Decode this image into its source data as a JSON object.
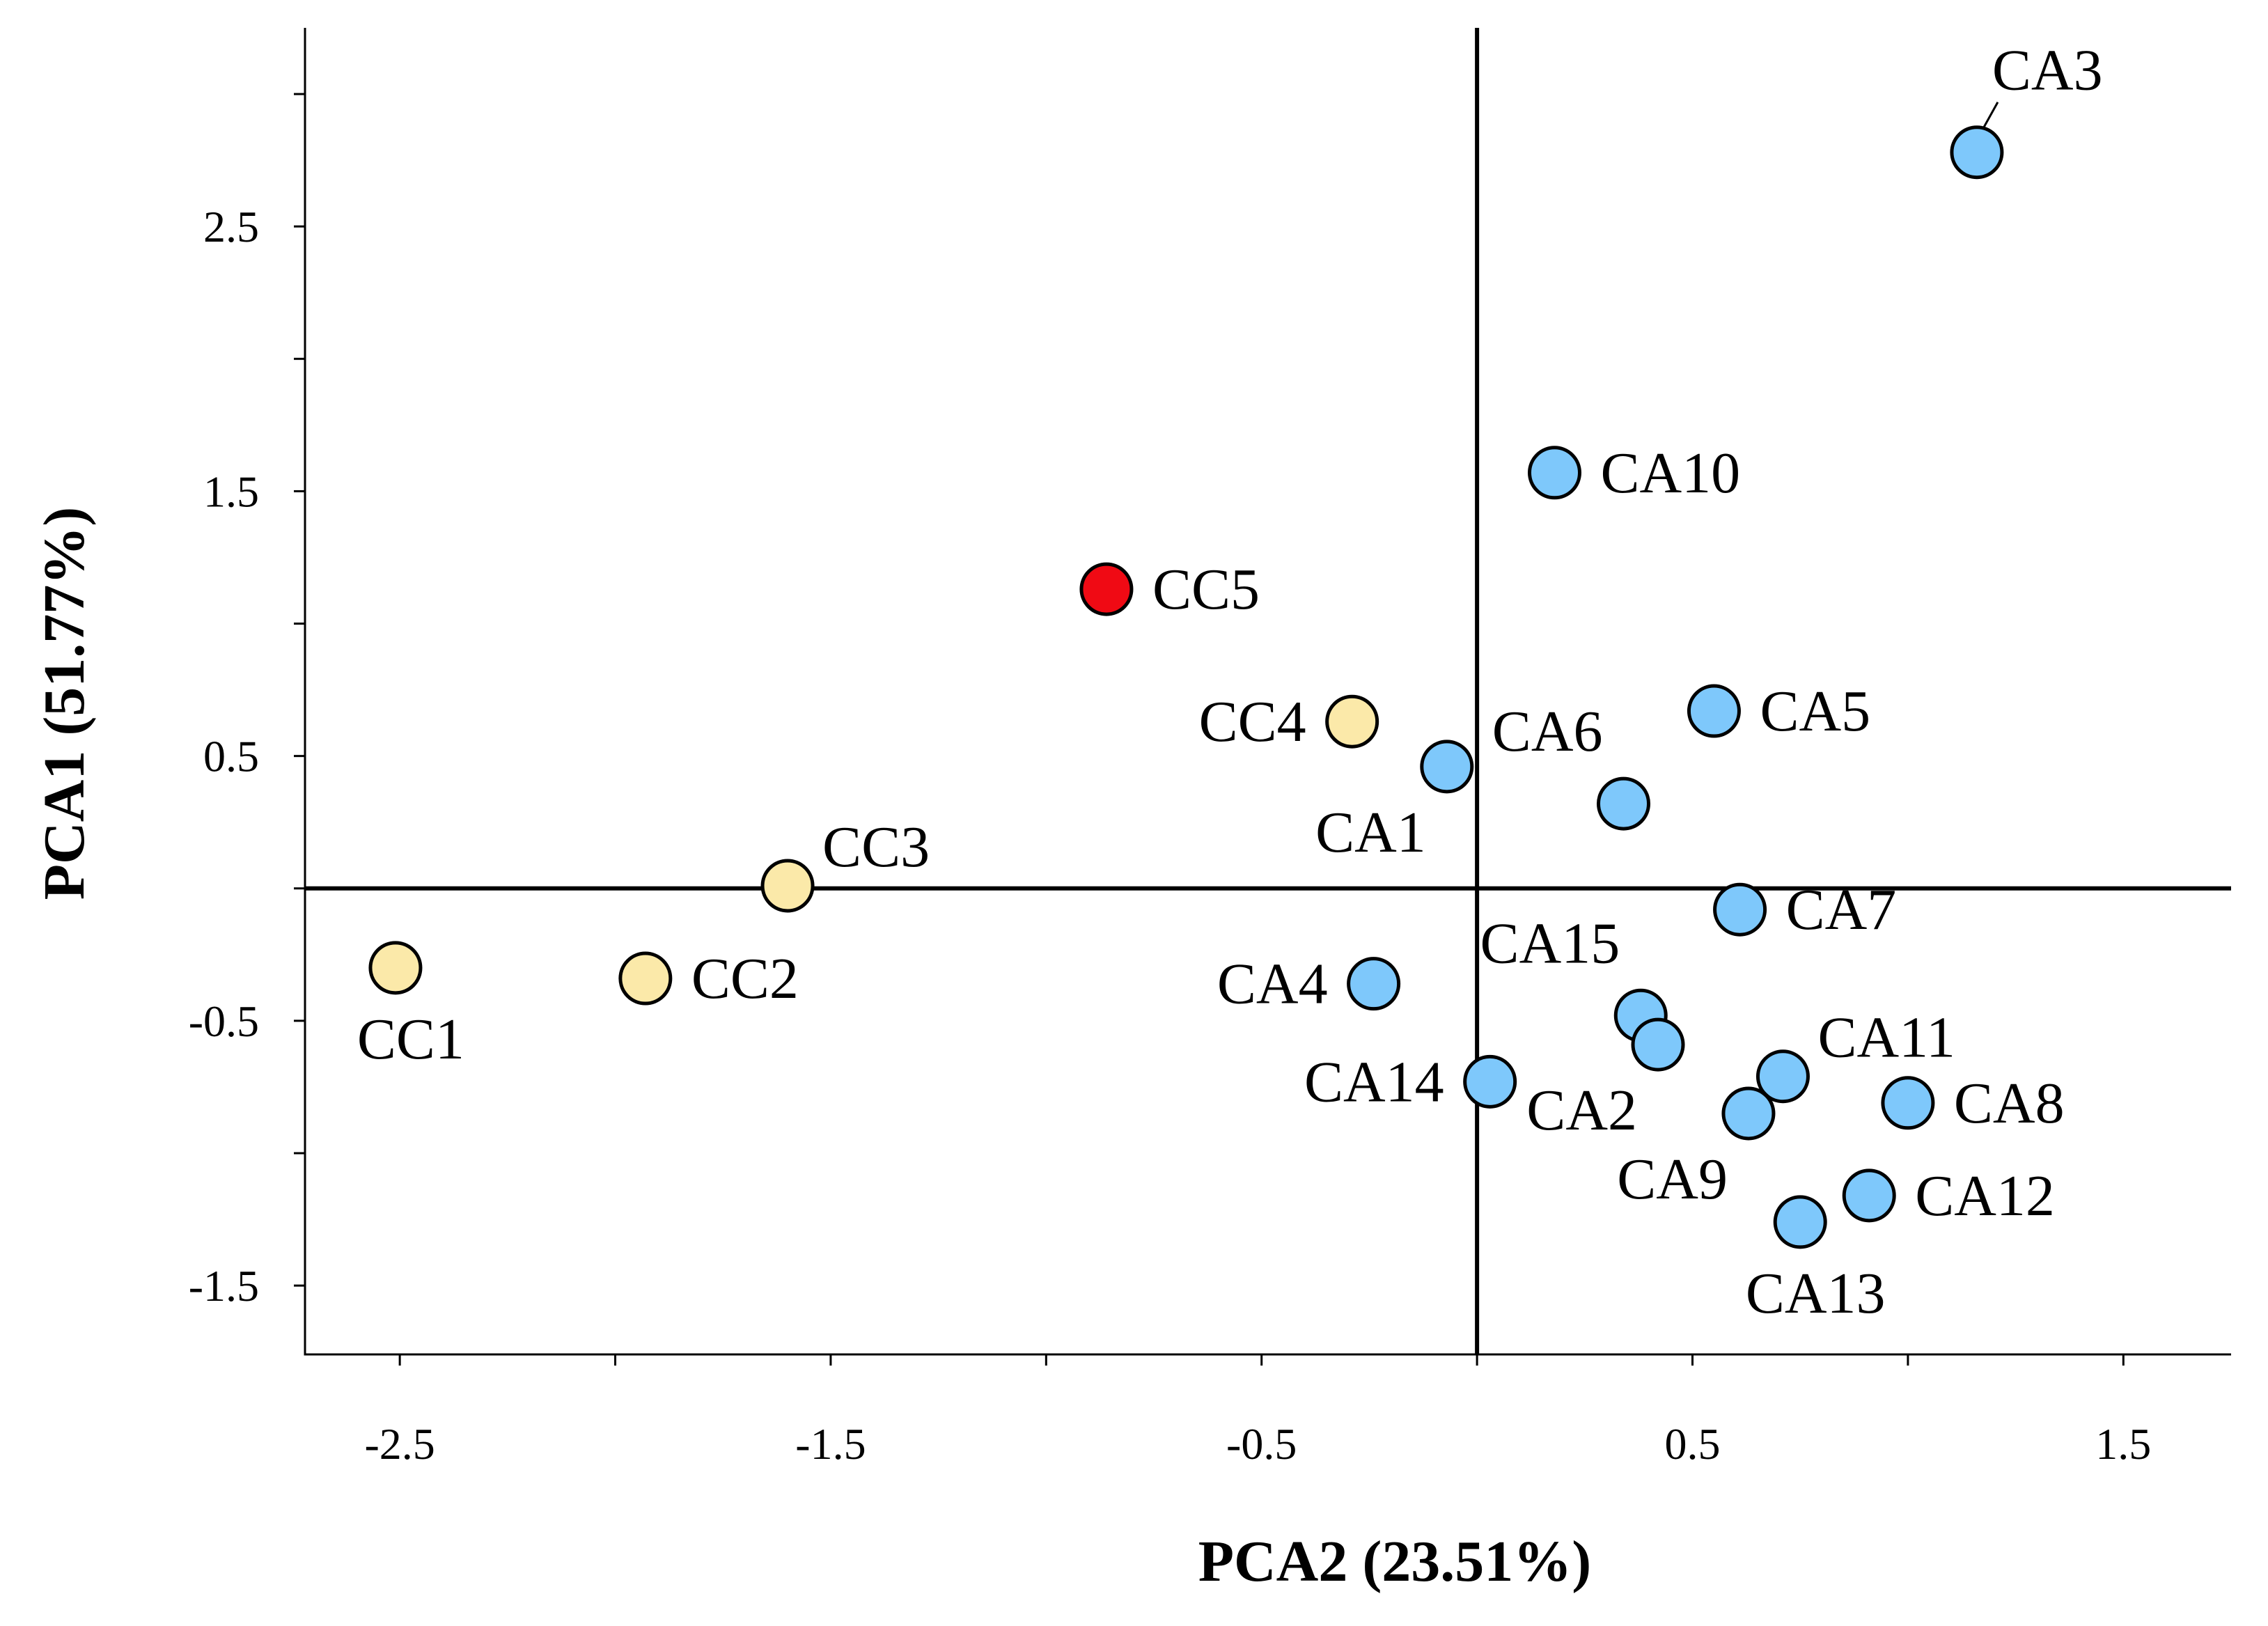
{
  "chart_data": {
    "type": "scatter",
    "title": "",
    "xlabel": "PCA2 (23.51%)",
    "ylabel": "PCA1 (51.77%)",
    "xlim": [
      -2.72,
      1.75
    ],
    "ylim": [
      -1.76,
      3.25
    ],
    "x_tick_labels": [
      {
        "value": -2.5,
        "label": "-2.5"
      },
      {
        "value": -1.5,
        "label": "-1.5"
      },
      {
        "value": -0.5,
        "label": "-0.5"
      },
      {
        "value": 0.5,
        "label": "0.5"
      },
      {
        "value": 1.5,
        "label": "1.5"
      }
    ],
    "x_minor_ticks": [
      -2.0,
      -1.0,
      0.0,
      1.0
    ],
    "y_tick_labels": [
      {
        "value": 2.5,
        "label": "2.5"
      },
      {
        "value": 1.5,
        "label": "1.5"
      },
      {
        "value": 0.5,
        "label": "0.5"
      },
      {
        "value": -0.5,
        "label": "-0.5"
      },
      {
        "value": -1.5,
        "label": "-1.5"
      }
    ],
    "y_minor_ticks": [
      3.0,
      2.0,
      1.0,
      0.0,
      -1.0
    ],
    "reference_lines": {
      "x": 0,
      "y": 0
    },
    "colors": {
      "CA": "#7ec8fb",
      "CC": "#fbe9a9",
      "CC5": "#f00a14"
    },
    "points": [
      {
        "label": "CA3",
        "group": "CA",
        "x": 1.16,
        "y": 2.78,
        "anchor": "above-right",
        "leader": true
      },
      {
        "label": "CA10",
        "group": "CA",
        "x": 0.18,
        "y": 1.57,
        "anchor": "right"
      },
      {
        "label": "CC5",
        "group": "CC5",
        "x": -0.86,
        "y": 1.13,
        "anchor": "right"
      },
      {
        "label": "CC4",
        "group": "CC",
        "x": -0.29,
        "y": 0.63,
        "anchor": "left"
      },
      {
        "label": "CA5",
        "group": "CA",
        "x": 0.55,
        "y": 0.67,
        "anchor": "right"
      },
      {
        "label": "CA6",
        "group": "CA",
        "x": 0.34,
        "y": 0.32,
        "anchor": "above-left"
      },
      {
        "label": "CA1",
        "group": "CA",
        "x": -0.07,
        "y": 0.46,
        "anchor": "below-left"
      },
      {
        "label": "CC3",
        "group": "CC",
        "x": -1.6,
        "y": 0.01,
        "anchor": "above-right"
      },
      {
        "label": "CA7",
        "group": "CA",
        "x": 0.61,
        "y": -0.08,
        "anchor": "right"
      },
      {
        "label": "CC1",
        "group": "CC",
        "x": -2.51,
        "y": -0.3,
        "anchor": "below"
      },
      {
        "label": "CC2",
        "group": "CC",
        "x": -1.93,
        "y": -0.34,
        "anchor": "right"
      },
      {
        "label": "CA4",
        "group": "CA",
        "x": -0.24,
        "y": -0.36,
        "anchor": "left"
      },
      {
        "label": "CA15",
        "group": "CA",
        "x": 0.38,
        "y": -0.48,
        "anchor": "above-left"
      },
      {
        "label": "CA2",
        "group": "CA",
        "x": 0.42,
        "y": -0.59,
        "anchor": "below-left"
      },
      {
        "label": "CA11",
        "group": "CA",
        "x": 0.71,
        "y": -0.71,
        "anchor": "above-right"
      },
      {
        "label": "CA14",
        "group": "CA",
        "x": 0.03,
        "y": -0.73,
        "anchor": "left"
      },
      {
        "label": "CA8",
        "group": "CA",
        "x": 1.0,
        "y": -0.81,
        "anchor": "right"
      },
      {
        "label": "CA9",
        "group": "CA",
        "x": 0.63,
        "y": -0.85,
        "anchor": "below-left"
      },
      {
        "label": "CA12",
        "group": "CA",
        "x": 0.91,
        "y": -1.16,
        "anchor": "right"
      },
      {
        "label": "CA13",
        "group": "CA",
        "x": 0.75,
        "y": -1.26,
        "anchor": "below"
      }
    ]
  }
}
